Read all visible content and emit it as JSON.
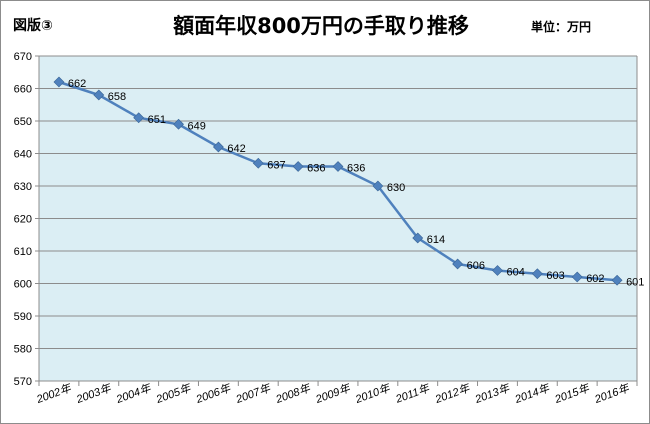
{
  "header": {
    "figure_label": "図版③",
    "title": "額面年収800万円の手取り推移",
    "unit_label": "単位：万円"
  },
  "chart_data": {
    "type": "line",
    "title": "額面年収800万円の手取り推移",
    "xlabel": "",
    "ylabel": "",
    "categories": [
      "2002年",
      "2003年",
      "2004年",
      "2005年",
      "2006年",
      "2007年",
      "2008年",
      "2009年",
      "2010年",
      "2011年",
      "2012年",
      "2013年",
      "2014年",
      "2015年",
      "2016年"
    ],
    "series": [
      {
        "values": [
          662,
          658,
          651,
          649,
          642,
          637,
          636,
          636,
          630,
          614,
          606,
          604,
          603,
          602,
          601
        ]
      }
    ],
    "ylim": [
      570,
      670
    ],
    "yticks": [
      570,
      580,
      590,
      600,
      610,
      620,
      630,
      640,
      650,
      660,
      670
    ],
    "grid": true,
    "legend": "none",
    "colors": {
      "plot_background": "#dbeef4",
      "line": "#4f81bd",
      "marker": "#4f81bd",
      "grid": "#8c8c8c"
    }
  }
}
